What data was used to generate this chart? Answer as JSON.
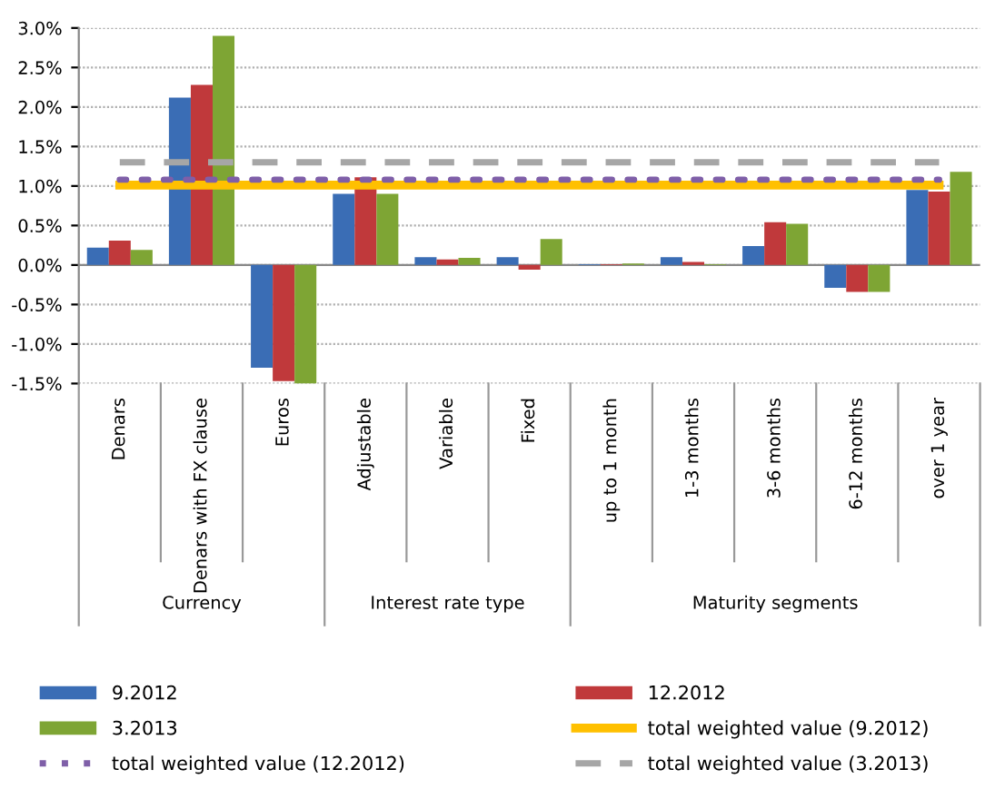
{
  "chart_data": {
    "type": "bar",
    "categories": [
      "Denars",
      "Denars with FX clause",
      "Euros",
      "Adjustable",
      "Variable",
      "Fixed",
      "up to 1 month",
      "1-3 months",
      "3-6 months",
      "6-12 months",
      "over 1 year"
    ],
    "series": [
      {
        "name": "9.2012",
        "color": "#3a6db5",
        "values": [
          0.22,
          2.12,
          -1.3,
          0.9,
          0.1,
          0.1,
          0.01,
          0.1,
          0.24,
          -0.29,
          0.95
        ]
      },
      {
        "name": "12.2012",
        "color": "#c0393b",
        "values": [
          0.31,
          2.28,
          -1.47,
          1.11,
          0.07,
          -0.06,
          0.01,
          0.04,
          0.54,
          -0.34,
          0.93
        ]
      },
      {
        "name": "3.2013",
        "color": "#7ea534",
        "values": [
          0.19,
          2.9,
          -1.5,
          0.9,
          0.09,
          0.33,
          0.02,
          0.01,
          0.52,
          -0.34,
          1.18
        ]
      },
      {
        "name": "total weighted value (9.2012)",
        "type": "line",
        "color": "#ffc000",
        "line_style": "solid",
        "values": [
          1.01,
          1.01,
          1.01,
          1.01,
          1.01,
          1.01,
          1.01,
          1.01,
          1.01,
          1.01,
          1.01
        ]
      },
      {
        "name": "total weighted value (12.2012)",
        "type": "line",
        "color": "#7f5fa8",
        "line_style": "dotted",
        "values": [
          1.08,
          1.08,
          1.08,
          1.08,
          1.08,
          1.08,
          1.08,
          1.08,
          1.08,
          1.08,
          1.08
        ]
      },
      {
        "name": "total weighted value (3.2013)",
        "type": "line",
        "color": "#a6a6a6",
        "line_style": "dashed",
        "values": [
          1.3,
          1.3,
          1.3,
          1.3,
          1.3,
          1.3,
          1.3,
          1.3,
          1.3,
          1.3,
          1.3
        ]
      }
    ],
    "ylim": [
      -1.5,
      3.0
    ],
    "yticks": [
      {
        "value": -1.5,
        "label": "-1.5%"
      },
      {
        "value": -1.0,
        "label": "-1.0%"
      },
      {
        "value": -0.5,
        "label": "-0.5%"
      },
      {
        "value": 0,
        "label": "0.0%"
      },
      {
        "value": 0.5,
        "label": "0.5%"
      },
      {
        "value": 1.0,
        "label": "1.0%"
      },
      {
        "value": 1.5,
        "label": "1.5%"
      },
      {
        "value": 2.0,
        "label": "2.0%"
      },
      {
        "value": 2.5,
        "label": "2.5%"
      },
      {
        "value": 3.0,
        "label": "3.0%"
      }
    ],
    "annotations": [
      "Currency",
      "Interest rate type",
      "Maturity segments"
    ],
    "grid": "y",
    "legend": "bottom"
  }
}
